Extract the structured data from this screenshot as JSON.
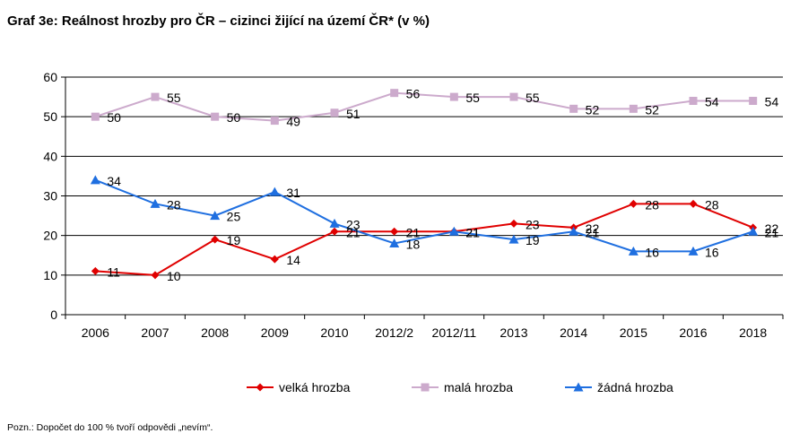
{
  "title": "Graf 3e: Reálnost hrozby pro ČR – cizinci žijící na území ČR* (v %)",
  "note": "Pozn.: Dopočet do 100 % tvoří odpovědi „nevím“.",
  "chart_data": {
    "type": "line",
    "title": "Graf 3e: Reálnost hrozby pro ČR – cizinci žijící na území ČR* (v %)",
    "xlabel": "",
    "ylabel": "",
    "ylim": [
      0,
      60
    ],
    "yticks": [
      "0",
      "10",
      "20",
      "30",
      "40",
      "50",
      "60"
    ],
    "grid": true,
    "legend_position": "bottom",
    "categories": [
      "2006",
      "2007",
      "2008",
      "2009",
      "2010",
      "2012/2",
      "2012/11",
      "2013",
      "2014",
      "2015",
      "2016",
      "2018"
    ],
    "series": [
      {
        "name": "velká hrozba",
        "color": "#e00000",
        "marker": "diamond",
        "values": [
          11,
          10,
          19,
          14,
          21,
          21,
          21,
          23,
          22,
          28,
          28,
          22
        ],
        "labels": [
          "11",
          "10",
          "19",
          "14",
          "21",
          "21",
          "21",
          "23",
          "22",
          "28",
          "28",
          "22"
        ]
      },
      {
        "name": "malá hrozba",
        "color": "#ccaacc",
        "marker": "square",
        "values": [
          50,
          55,
          50,
          49,
          51,
          56,
          55,
          55,
          52,
          52,
          54,
          54
        ],
        "labels": [
          "50",
          "55",
          "50",
          "49",
          "51",
          "56",
          "55",
          "55",
          "52",
          "52",
          "54",
          "54"
        ]
      },
      {
        "name": "žádná hrozba",
        "color": "#1f6fe0",
        "marker": "triangle",
        "values": [
          34,
          28,
          25,
          31,
          23,
          18,
          21,
          19,
          21,
          16,
          16,
          21
        ],
        "labels": [
          "34",
          "28",
          "25",
          "31",
          "23",
          "18",
          "21",
          "19",
          "21",
          "16",
          "16",
          "21"
        ]
      }
    ]
  }
}
